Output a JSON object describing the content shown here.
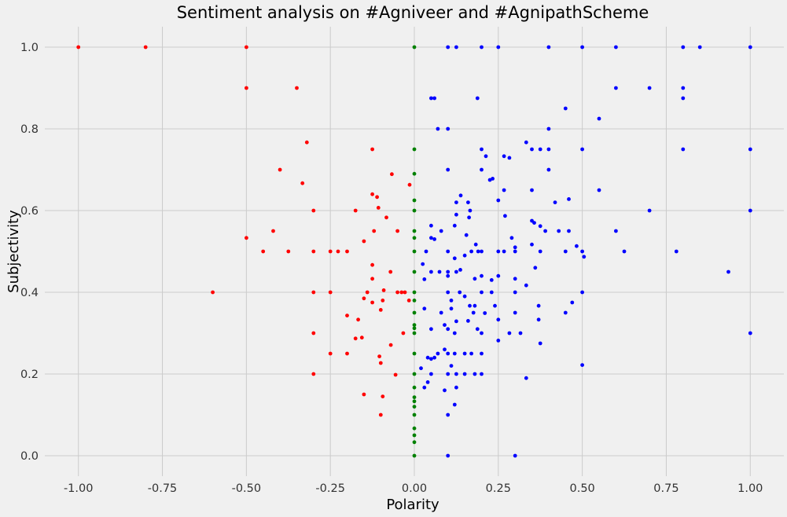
{
  "chart_data": {
    "type": "scatter",
    "title": "Sentiment analysis on #Agniveer and #AgnipathScheme",
    "xlabel": "Polarity",
    "ylabel": "Subjectivity",
    "xlim": [
      -1.1,
      1.1
    ],
    "ylim": [
      -0.05,
      1.05
    ],
    "x_ticks": [
      "-1.00",
      "-0.75",
      "-0.50",
      "-0.25",
      "0.00",
      "0.25",
      "0.50",
      "0.75",
      "1.00"
    ],
    "y_ticks": [
      "0.0",
      "0.2",
      "0.4",
      "0.6",
      "0.8",
      "1.0"
    ],
    "grid": true,
    "colors": {
      "negative": "#ff0000",
      "neutral": "#008000",
      "positive": "#0000ff",
      "background": "#f0f0f0",
      "grid": "#cbcbcb"
    },
    "series": [
      {
        "color": "#ff0000",
        "points": [
          [
            -1.0,
            1.0
          ],
          [
            -0.8,
            1.0
          ],
          [
            -0.5,
            1.0
          ],
          [
            -0.5,
            0.9
          ],
          [
            -0.35,
            0.9
          ],
          [
            -0.32,
            0.767
          ],
          [
            -0.4,
            0.7
          ],
          [
            -0.333,
            0.667
          ],
          [
            -0.42,
            0.55
          ],
          [
            -0.5,
            0.533
          ],
          [
            -0.45,
            0.5
          ],
          [
            -0.375,
            0.5
          ],
          [
            -0.3,
            0.5
          ],
          [
            -0.3,
            0.6
          ],
          [
            -0.25,
            0.5
          ],
          [
            -0.227,
            0.5
          ],
          [
            -0.2,
            0.5
          ],
          [
            -0.15,
            0.525
          ],
          [
            -0.6,
            0.4
          ],
          [
            -0.3,
            0.4
          ],
          [
            -0.25,
            0.4
          ],
          [
            -0.3,
            0.3
          ],
          [
            -0.3,
            0.2
          ],
          [
            -0.25,
            0.25
          ],
          [
            -0.2,
            0.25
          ],
          [
            -0.2,
            0.343
          ],
          [
            -0.175,
            0.287
          ],
          [
            -0.167,
            0.333
          ],
          [
            -0.156,
            0.289
          ],
          [
            -0.15,
            0.385
          ],
          [
            -0.125,
            0.75
          ],
          [
            -0.125,
            0.64
          ],
          [
            -0.12,
            0.55
          ],
          [
            -0.111,
            0.633
          ],
          [
            -0.107,
            0.607
          ],
          [
            -0.125,
            0.467
          ],
          [
            -0.125,
            0.433
          ],
          [
            -0.125,
            0.375
          ],
          [
            -0.1,
            0.357
          ],
          [
            -0.1,
            0.1
          ],
          [
            -0.094,
            0.145
          ],
          [
            -0.094,
            0.38
          ],
          [
            -0.091,
            0.405
          ],
          [
            -0.083,
            0.583
          ],
          [
            -0.071,
            0.45
          ],
          [
            -0.07,
            0.271
          ],
          [
            -0.067,
            0.689
          ],
          [
            -0.05,
            0.55
          ],
          [
            -0.05,
            0.4
          ],
          [
            -0.038,
            0.4
          ],
          [
            -0.033,
            0.3
          ],
          [
            -0.028,
            0.4
          ],
          [
            -0.016,
            0.38
          ],
          [
            -0.014,
            0.663
          ],
          [
            -0.15,
            0.15
          ],
          [
            -0.104,
            0.243
          ],
          [
            -0.1,
            0.227
          ],
          [
            -0.056,
            0.198
          ],
          [
            -0.175,
            0.6
          ],
          [
            -0.14,
            0.4
          ]
        ]
      },
      {
        "color": "#008000",
        "points": [
          [
            0.0,
            1.0
          ],
          [
            0.0,
            0.75
          ],
          [
            0.0,
            0.69
          ],
          [
            0.0,
            0.625
          ],
          [
            0.0,
            0.6
          ],
          [
            0.0,
            0.55
          ],
          [
            0.0,
            0.533
          ],
          [
            0.0,
            0.5
          ],
          [
            0.0,
            0.45
          ],
          [
            0.0,
            0.4
          ],
          [
            0.0,
            0.38
          ],
          [
            0.0,
            0.35
          ],
          [
            0.0,
            0.32
          ],
          [
            0.0,
            0.312
          ],
          [
            0.0,
            0.3
          ],
          [
            0.0,
            0.25
          ],
          [
            0.0,
            0.2
          ],
          [
            0.0,
            0.167
          ],
          [
            0.0,
            0.143
          ],
          [
            0.0,
            0.133
          ],
          [
            0.0,
            0.12
          ],
          [
            0.0,
            0.1
          ],
          [
            0.0,
            0.067
          ],
          [
            0.0,
            0.05
          ],
          [
            0.0,
            0.033
          ],
          [
            0.0,
            0.0
          ]
        ]
      },
      {
        "color": "#0000ff",
        "points": [
          [
            0.1,
            1.0
          ],
          [
            0.125,
            1.0
          ],
          [
            0.2,
            1.0
          ],
          [
            0.25,
            1.0
          ],
          [
            0.4,
            1.0
          ],
          [
            0.5,
            1.0
          ],
          [
            0.6,
            1.0
          ],
          [
            0.8,
            1.0
          ],
          [
            0.85,
            1.0
          ],
          [
            1.0,
            1.0
          ],
          [
            0.05,
            0.875
          ],
          [
            0.06,
            0.875
          ],
          [
            0.188,
            0.875
          ],
          [
            0.6,
            0.9
          ],
          [
            0.7,
            0.9
          ],
          [
            0.8,
            0.9
          ],
          [
            0.8,
            0.875
          ],
          [
            0.45,
            0.85
          ],
          [
            0.55,
            0.825
          ],
          [
            0.07,
            0.8
          ],
          [
            0.1,
            0.8
          ],
          [
            0.4,
            0.8
          ],
          [
            0.333,
            0.767
          ],
          [
            0.2,
            0.75
          ],
          [
            0.35,
            0.75
          ],
          [
            0.375,
            0.75
          ],
          [
            0.4,
            0.75
          ],
          [
            0.5,
            0.75
          ],
          [
            0.8,
            0.75
          ],
          [
            1.0,
            0.75
          ],
          [
            0.213,
            0.733
          ],
          [
            0.267,
            0.733
          ],
          [
            0.283,
            0.729
          ],
          [
            0.1,
            0.7
          ],
          [
            0.2,
            0.7
          ],
          [
            0.4,
            0.7
          ],
          [
            0.225,
            0.675
          ],
          [
            0.233,
            0.678
          ],
          [
            0.267,
            0.65
          ],
          [
            0.35,
            0.65
          ],
          [
            0.55,
            0.65
          ],
          [
            0.138,
            0.637
          ],
          [
            0.46,
            0.628
          ],
          [
            0.125,
            0.62
          ],
          [
            0.16,
            0.62
          ],
          [
            0.25,
            0.625
          ],
          [
            0.419,
            0.62
          ],
          [
            0.7,
            0.6
          ],
          [
            1.0,
            0.6
          ],
          [
            0.166,
            0.6
          ],
          [
            0.125,
            0.59
          ],
          [
            0.27,
            0.587
          ],
          [
            0.163,
            0.583
          ],
          [
            0.35,
            0.575
          ],
          [
            0.357,
            0.57
          ],
          [
            0.375,
            0.562
          ],
          [
            0.05,
            0.563
          ],
          [
            0.12,
            0.563
          ],
          [
            0.6,
            0.55
          ],
          [
            0.08,
            0.55
          ],
          [
            0.155,
            0.54
          ],
          [
            0.39,
            0.55
          ],
          [
            0.43,
            0.55
          ],
          [
            0.46,
            0.55
          ],
          [
            0.05,
            0.533
          ],
          [
            0.06,
            0.53
          ],
          [
            0.29,
            0.533
          ],
          [
            0.35,
            0.517
          ],
          [
            0.483,
            0.513
          ],
          [
            0.035,
            0.5
          ],
          [
            0.1,
            0.5
          ],
          [
            0.17,
            0.5
          ],
          [
            0.183,
            0.517
          ],
          [
            0.2,
            0.5
          ],
          [
            0.25,
            0.5
          ],
          [
            0.267,
            0.5
          ],
          [
            0.3,
            0.5
          ],
          [
            0.375,
            0.5
          ],
          [
            0.45,
            0.5
          ],
          [
            0.5,
            0.5
          ],
          [
            0.625,
            0.5
          ],
          [
            0.78,
            0.5
          ],
          [
            0.505,
            0.487
          ],
          [
            0.12,
            0.483
          ],
          [
            0.15,
            0.49
          ],
          [
            0.19,
            0.5
          ],
          [
            0.3,
            0.51
          ],
          [
            0.36,
            0.46
          ],
          [
            0.025,
            0.469
          ],
          [
            0.075,
            0.45
          ],
          [
            0.05,
            0.45
          ],
          [
            0.1,
            0.44
          ],
          [
            0.125,
            0.45
          ],
          [
            0.137,
            0.455
          ],
          [
            0.03,
            0.432
          ],
          [
            0.1,
            0.45
          ],
          [
            0.18,
            0.433
          ],
          [
            0.2,
            0.44
          ],
          [
            0.23,
            0.43
          ],
          [
            0.25,
            0.44
          ],
          [
            0.3,
            0.433
          ],
          [
            0.333,
            0.417
          ],
          [
            0.5,
            0.4
          ],
          [
            0.935,
            0.45
          ],
          [
            0.1,
            0.4
          ],
          [
            0.11,
            0.38
          ],
          [
            0.15,
            0.39
          ],
          [
            0.2,
            0.4
          ],
          [
            0.23,
            0.4
          ],
          [
            0.3,
            0.4
          ],
          [
            0.03,
            0.36
          ],
          [
            0.08,
            0.35
          ],
          [
            0.1,
            0.31
          ],
          [
            0.11,
            0.36
          ],
          [
            0.125,
            0.329
          ],
          [
            0.135,
            0.4
          ],
          [
            0.16,
            0.33
          ],
          [
            0.165,
            0.367
          ],
          [
            0.176,
            0.35
          ],
          [
            0.18,
            0.367
          ],
          [
            0.188,
            0.31
          ],
          [
            0.2,
            0.3
          ],
          [
            0.21,
            0.349
          ],
          [
            0.24,
            0.367
          ],
          [
            0.25,
            0.333
          ],
          [
            0.283,
            0.3
          ],
          [
            0.3,
            0.35
          ],
          [
            0.316,
            0.3
          ],
          [
            0.37,
            0.367
          ],
          [
            0.37,
            0.333
          ],
          [
            0.45,
            0.35
          ],
          [
            0.47,
            0.375
          ],
          [
            0.05,
            0.31
          ],
          [
            0.09,
            0.32
          ],
          [
            0.12,
            0.3
          ],
          [
            0.25,
            0.282
          ],
          [
            0.375,
            0.275
          ],
          [
            1.0,
            0.3
          ],
          [
            0.09,
            0.26
          ],
          [
            0.05,
            0.237
          ],
          [
            0.07,
            0.25
          ],
          [
            0.06,
            0.24
          ],
          [
            0.1,
            0.25
          ],
          [
            0.12,
            0.25
          ],
          [
            0.15,
            0.25
          ],
          [
            0.17,
            0.25
          ],
          [
            0.2,
            0.25
          ],
          [
            0.02,
            0.214
          ],
          [
            0.04,
            0.24
          ],
          [
            0.1,
            0.2
          ],
          [
            0.11,
            0.22
          ],
          [
            0.125,
            0.2
          ],
          [
            0.15,
            0.2
          ],
          [
            0.18,
            0.2
          ],
          [
            0.2,
            0.2
          ],
          [
            0.5,
            0.222
          ],
          [
            0.05,
            0.2
          ],
          [
            0.04,
            0.18
          ],
          [
            0.09,
            0.16
          ],
          [
            0.125,
            0.167
          ],
          [
            0.333,
            0.19
          ],
          [
            0.03,
            0.167
          ],
          [
            0.12,
            0.125
          ],
          [
            0.1,
            0.1
          ],
          [
            0.1,
            0.0
          ],
          [
            0.3,
            0.0
          ]
        ]
      }
    ]
  }
}
